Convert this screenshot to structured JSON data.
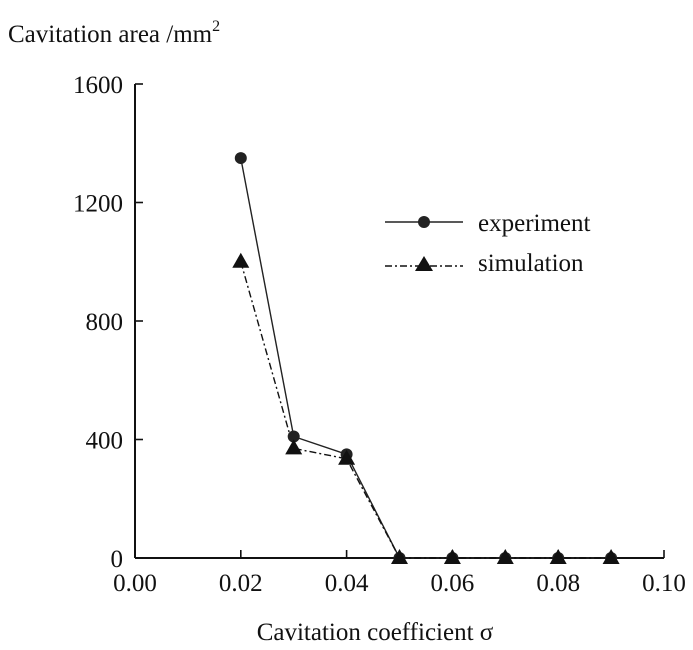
{
  "chart_data": {
    "type": "line",
    "xlabel": "Cavitation coefficient σ",
    "ylabel": "Cavitation area /mm",
    "ylabel_superscript": "2",
    "xlim": [
      0.0,
      0.1
    ],
    "ylim": [
      0,
      1600
    ],
    "x_ticks": [
      "0.00",
      "0.02",
      "0.04",
      "0.06",
      "0.08",
      "0.10"
    ],
    "y_ticks": [
      "0",
      "400",
      "800",
      "1200",
      "1600"
    ],
    "grid": false,
    "legend_position": "top-right",
    "series": [
      {
        "name": "experiment",
        "marker": "circle",
        "line_style": "solid",
        "color": "#222222",
        "x": [
          0.02,
          0.03,
          0.04,
          0.05,
          0.06,
          0.07,
          0.08,
          0.09
        ],
        "y": [
          1350,
          410,
          350,
          0,
          0,
          0,
          0,
          0
        ]
      },
      {
        "name": "simulation",
        "marker": "triangle",
        "line_style": "dash-dot",
        "color": "#111111",
        "x": [
          0.02,
          0.03,
          0.04,
          0.05,
          0.06,
          0.07,
          0.08,
          0.09
        ],
        "y": [
          1000,
          370,
          335,
          0,
          0,
          0,
          0,
          0
        ]
      }
    ]
  }
}
